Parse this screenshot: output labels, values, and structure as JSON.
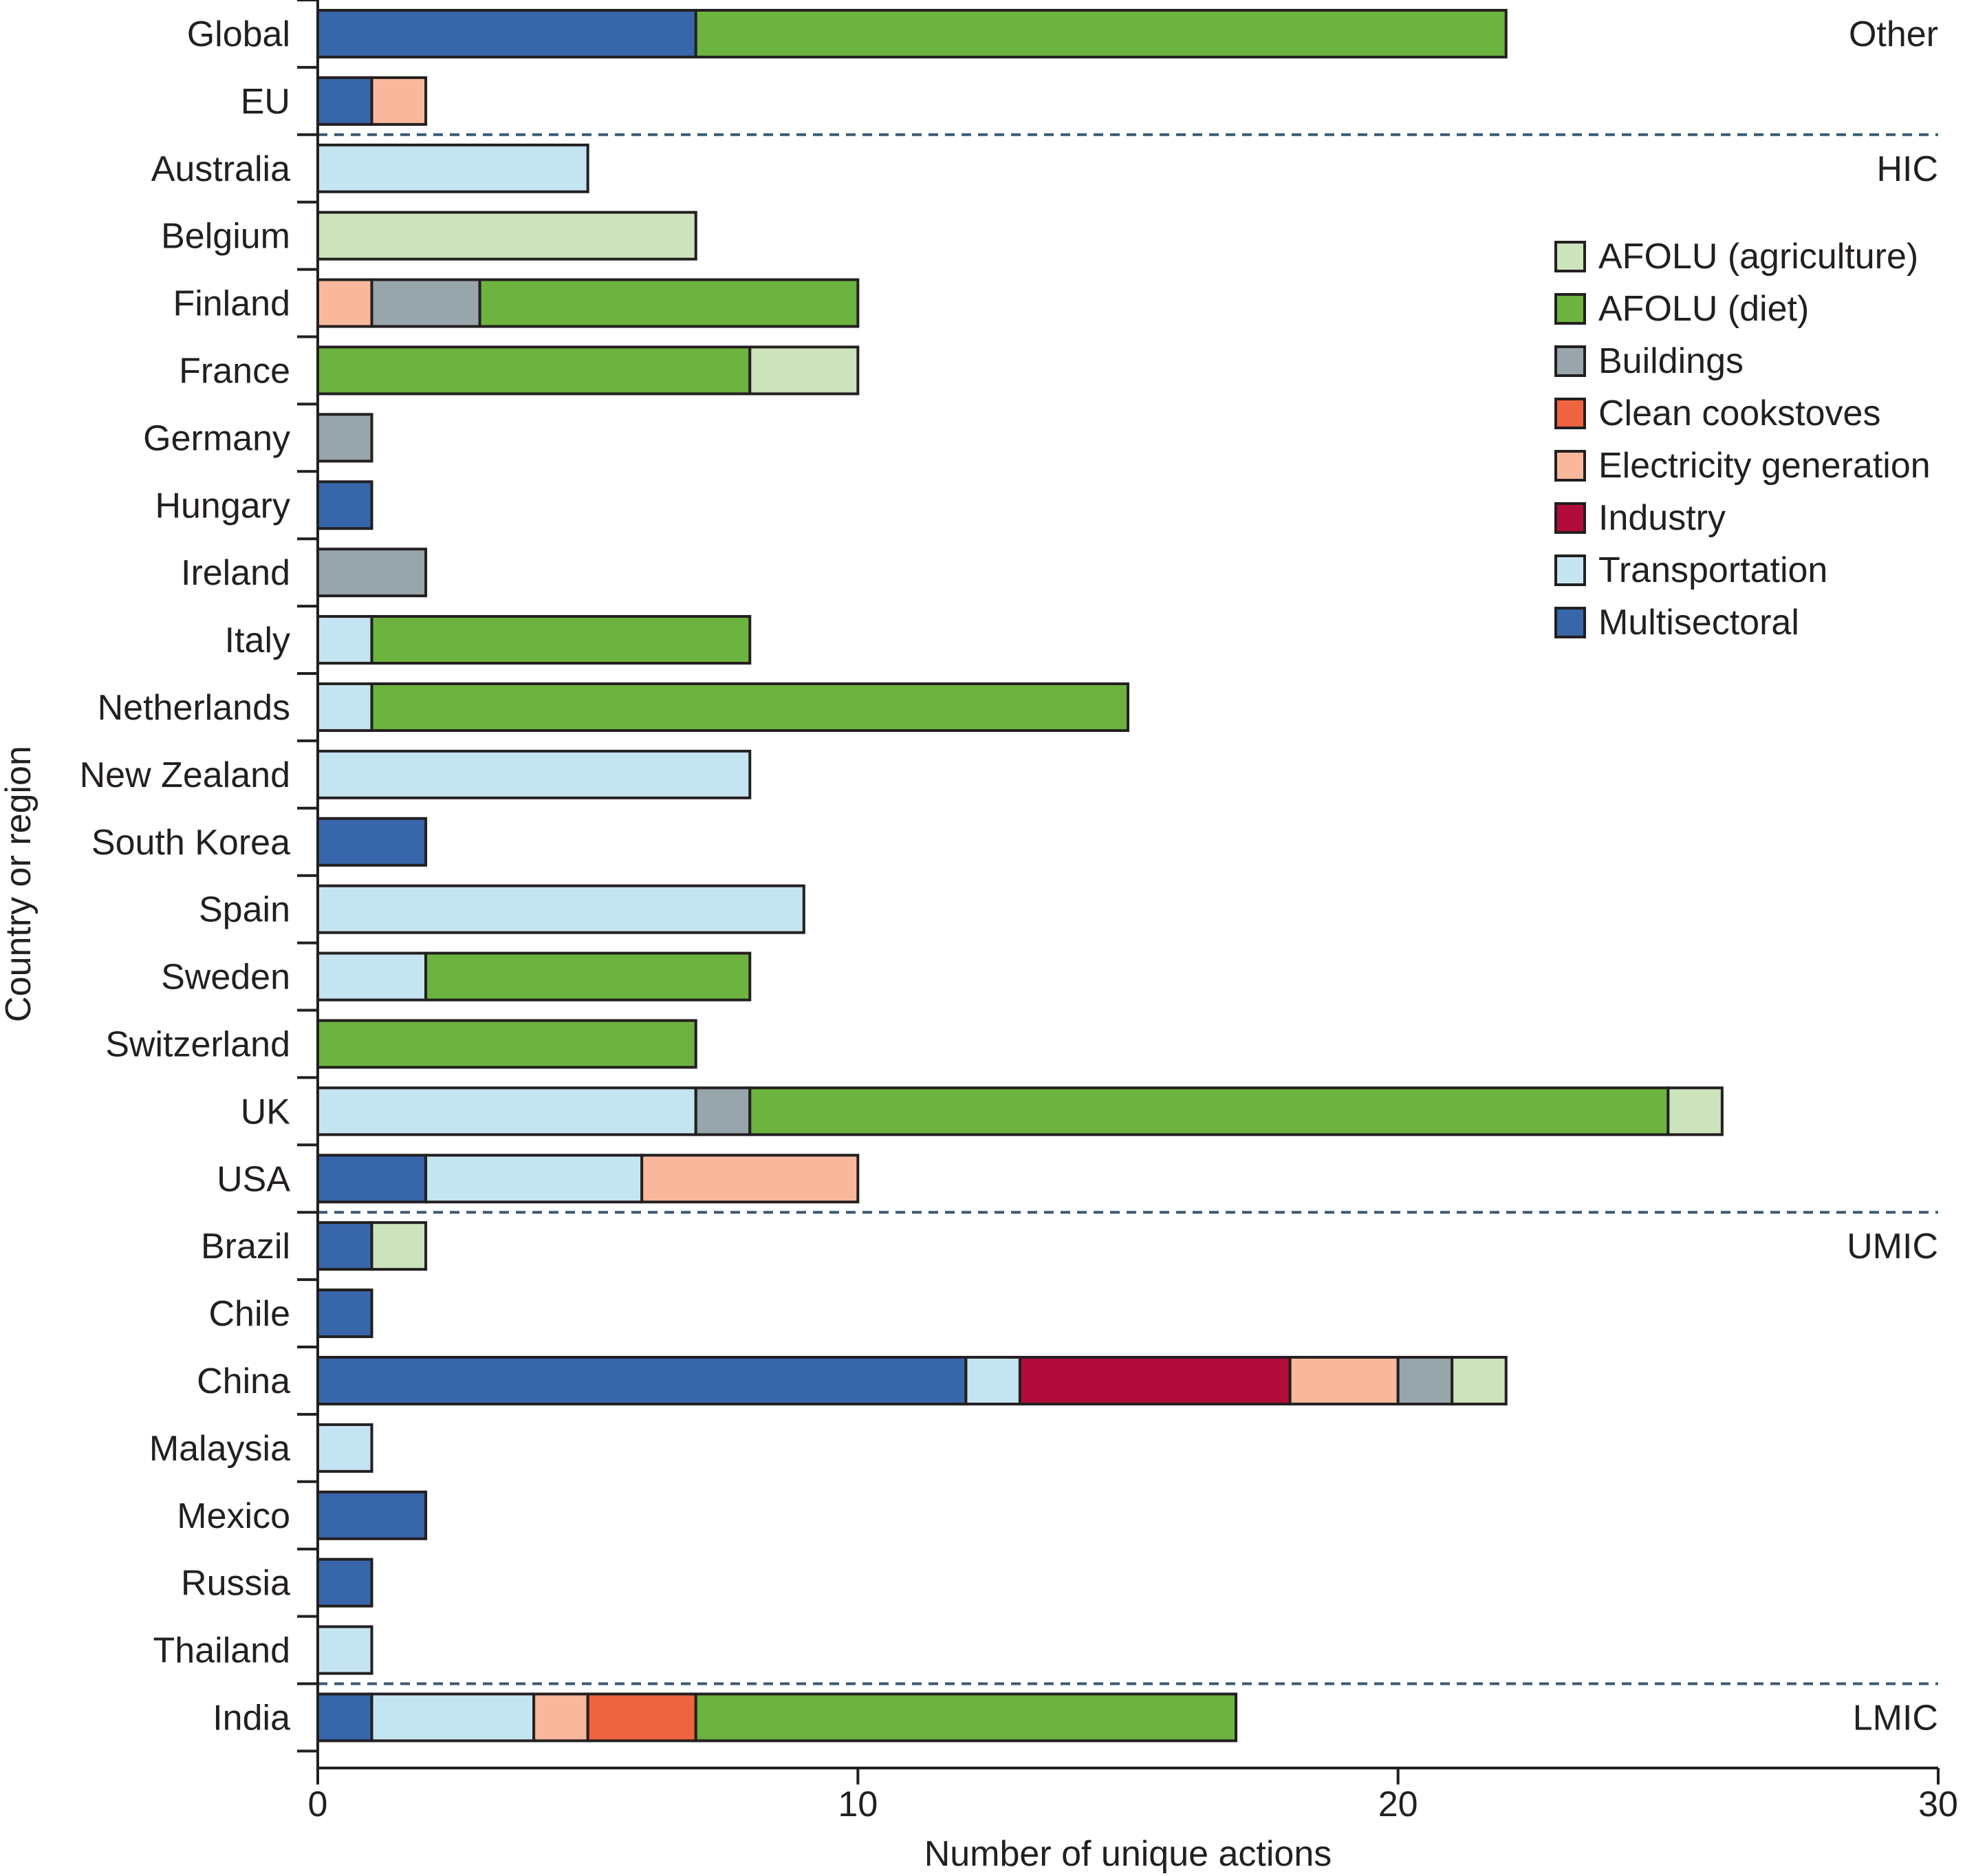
{
  "chart_data": {
    "type": "bar",
    "orientation": "horizontal",
    "stacked": true,
    "xlabel": "Number of unique actions",
    "ylabel": "Country or region",
    "xlim": [
      0,
      30
    ],
    "xticks": [
      0,
      10,
      20,
      30
    ],
    "grid": false,
    "legend_position": "right",
    "sectors": [
      {
        "key": "agri",
        "name": "AFOLU (agriculture)",
        "color": "#cde3bb"
      },
      {
        "key": "diet",
        "name": "AFOLU (diet)",
        "color": "#6db33f"
      },
      {
        "key": "bld",
        "name": "Buildings",
        "color": "#98a5ab"
      },
      {
        "key": "cook",
        "name": "Clean cookstoves",
        "color": "#ef6440"
      },
      {
        "key": "elec",
        "name": "Electricity generation",
        "color": "#f9b89c"
      },
      {
        "key": "ind",
        "name": "Industry",
        "color": "#b10c3c"
      },
      {
        "key": "trans",
        "name": "Transportation",
        "color": "#c5e4f1"
      },
      {
        "key": "multi",
        "name": "Multisectoral",
        "color": "#3766ab"
      }
    ],
    "groups": [
      {
        "name": "Other",
        "rows": 2
      },
      {
        "name": "HIC",
        "rows": 16
      },
      {
        "name": "UMIC",
        "rows": 7
      },
      {
        "name": "LMIC",
        "rows": 1
      }
    ],
    "categories": [
      "Global",
      "EU",
      "Australia",
      "Belgium",
      "Finland",
      "France",
      "Germany",
      "Hungary",
      "Ireland",
      "Italy",
      "Netherlands",
      "New Zealand",
      "South Korea",
      "Spain",
      "Sweden",
      "Switzerland",
      "UK",
      "USA",
      "Brazil",
      "Chile",
      "China",
      "Malaysia",
      "Mexico",
      "Russia",
      "Thailand",
      "India"
    ],
    "bars": [
      {
        "category": "Global",
        "segments": [
          {
            "sector": "multi",
            "value": 7
          },
          {
            "sector": "diet",
            "value": 15
          }
        ]
      },
      {
        "category": "EU",
        "segments": [
          {
            "sector": "multi",
            "value": 1
          },
          {
            "sector": "elec",
            "value": 1
          }
        ]
      },
      {
        "category": "Australia",
        "segments": [
          {
            "sector": "trans",
            "value": 5
          }
        ]
      },
      {
        "category": "Belgium",
        "segments": [
          {
            "sector": "agri",
            "value": 7
          }
        ]
      },
      {
        "category": "Finland",
        "segments": [
          {
            "sector": "elec",
            "value": 1
          },
          {
            "sector": "bld",
            "value": 2
          },
          {
            "sector": "diet",
            "value": 7
          }
        ]
      },
      {
        "category": "France",
        "segments": [
          {
            "sector": "diet",
            "value": 8
          },
          {
            "sector": "agri",
            "value": 2
          }
        ]
      },
      {
        "category": "Germany",
        "segments": [
          {
            "sector": "bld",
            "value": 1
          }
        ]
      },
      {
        "category": "Hungary",
        "segments": [
          {
            "sector": "multi",
            "value": 1
          }
        ]
      },
      {
        "category": "Ireland",
        "segments": [
          {
            "sector": "bld",
            "value": 2
          }
        ]
      },
      {
        "category": "Italy",
        "segments": [
          {
            "sector": "trans",
            "value": 1
          },
          {
            "sector": "diet",
            "value": 7
          }
        ]
      },
      {
        "category": "Netherlands",
        "segments": [
          {
            "sector": "trans",
            "value": 1
          },
          {
            "sector": "diet",
            "value": 14
          }
        ]
      },
      {
        "category": "New Zealand",
        "segments": [
          {
            "sector": "trans",
            "value": 8
          }
        ]
      },
      {
        "category": "South Korea",
        "segments": [
          {
            "sector": "multi",
            "value": 2
          }
        ]
      },
      {
        "category": "Spain",
        "segments": [
          {
            "sector": "trans",
            "value": 9
          }
        ]
      },
      {
        "category": "Sweden",
        "segments": [
          {
            "sector": "trans",
            "value": 2
          },
          {
            "sector": "diet",
            "value": 6
          }
        ]
      },
      {
        "category": "Switzerland",
        "segments": [
          {
            "sector": "diet",
            "value": 7
          }
        ]
      },
      {
        "category": "UK",
        "segments": [
          {
            "sector": "trans",
            "value": 7
          },
          {
            "sector": "bld",
            "value": 1
          },
          {
            "sector": "diet",
            "value": 17
          },
          {
            "sector": "agri",
            "value": 1
          }
        ]
      },
      {
        "category": "USA",
        "segments": [
          {
            "sector": "multi",
            "value": 2
          },
          {
            "sector": "trans",
            "value": 4
          },
          {
            "sector": "elec",
            "value": 4
          }
        ]
      },
      {
        "category": "Brazil",
        "segments": [
          {
            "sector": "multi",
            "value": 1
          },
          {
            "sector": "agri",
            "value": 1
          }
        ]
      },
      {
        "category": "Chile",
        "segments": [
          {
            "sector": "multi",
            "value": 1
          }
        ]
      },
      {
        "category": "China",
        "segments": [
          {
            "sector": "multi",
            "value": 12
          },
          {
            "sector": "trans",
            "value": 1
          },
          {
            "sector": "ind",
            "value": 5
          },
          {
            "sector": "elec",
            "value": 2
          },
          {
            "sector": "bld",
            "value": 1
          },
          {
            "sector": "agri",
            "value": 1
          }
        ]
      },
      {
        "category": "Malaysia",
        "segments": [
          {
            "sector": "trans",
            "value": 1
          }
        ]
      },
      {
        "category": "Mexico",
        "segments": [
          {
            "sector": "multi",
            "value": 2
          }
        ]
      },
      {
        "category": "Russia",
        "segments": [
          {
            "sector": "multi",
            "value": 1
          }
        ]
      },
      {
        "category": "Thailand",
        "segments": [
          {
            "sector": "trans",
            "value": 1
          }
        ]
      },
      {
        "category": "India",
        "segments": [
          {
            "sector": "multi",
            "value": 1
          },
          {
            "sector": "trans",
            "value": 3
          },
          {
            "sector": "elec",
            "value": 1
          },
          {
            "sector": "cook",
            "value": 2
          },
          {
            "sector": "diet",
            "value": 10
          }
        ]
      }
    ]
  }
}
